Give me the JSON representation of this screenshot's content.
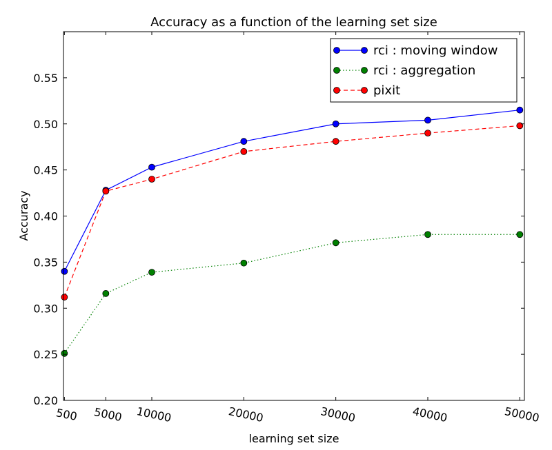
{
  "chart_data": {
    "type": "line",
    "title": "Accuracy as a function of the learning set size",
    "xlabel": "learning set size",
    "ylabel": "Accuracy",
    "x": [
      500,
      5000,
      10000,
      20000,
      30000,
      40000,
      50000
    ],
    "x_tick_labels": [
      "500",
      "5000",
      "10000",
      "20000",
      "30000",
      "40000",
      "50000"
    ],
    "y_ticks": [
      "0.20",
      "0.25",
      "0.30",
      "0.35",
      "0.40",
      "0.45",
      "0.50",
      "0.55"
    ],
    "xlim": [
      400,
      50500
    ],
    "ylim": [
      0.2,
      0.6
    ],
    "grid": false,
    "legend_position": "top-right",
    "series": [
      {
        "name": "rci : moving window",
        "color": "#0000ff",
        "marker_color": "#0000ff",
        "line_style": "solid",
        "values": [
          0.34,
          0.428,
          0.453,
          0.481,
          0.5,
          0.504,
          0.515
        ]
      },
      {
        "name": "rci : aggregation",
        "color": "#008000",
        "marker_color": "#008000",
        "line_style": "dotted",
        "values": [
          0.251,
          0.316,
          0.339,
          0.349,
          0.371,
          0.38,
          0.38
        ]
      },
      {
        "name": "pixit",
        "color": "#ff0000",
        "marker_color": "#ff0000",
        "line_style": "dashed",
        "values": [
          0.312,
          0.427,
          0.44,
          0.47,
          0.481,
          0.49,
          0.498
        ]
      }
    ]
  }
}
